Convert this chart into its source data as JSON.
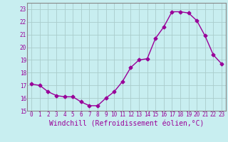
{
  "x": [
    0,
    1,
    2,
    3,
    4,
    5,
    6,
    7,
    8,
    9,
    10,
    11,
    12,
    13,
    14,
    15,
    16,
    17,
    18,
    19,
    20,
    21,
    22,
    23
  ],
  "y": [
    17.1,
    17.0,
    16.5,
    16.2,
    16.1,
    16.1,
    15.7,
    15.4,
    15.4,
    16.0,
    16.5,
    17.3,
    18.4,
    19.0,
    19.1,
    20.7,
    21.6,
    22.8,
    22.8,
    22.7,
    22.1,
    20.9,
    19.4,
    18.7
  ],
  "line_color": "#990099",
  "marker": "D",
  "marker_size": 2.5,
  "bg_color": "#c8eef0",
  "grid_color": "#aacccc",
  "xlabel": "Windchill (Refroidissement éolien,°C)",
  "ylabel": "",
  "title": "",
  "ylim": [
    15,
    23.5
  ],
  "xlim": [
    -0.5,
    23.5
  ],
  "yticks": [
    15,
    16,
    17,
    18,
    19,
    20,
    21,
    22,
    23
  ],
  "xticks": [
    0,
    1,
    2,
    3,
    4,
    5,
    6,
    7,
    8,
    9,
    10,
    11,
    12,
    13,
    14,
    15,
    16,
    17,
    18,
    19,
    20,
    21,
    22,
    23
  ],
  "tick_label_color": "#990099",
  "tick_label_fontsize": 5.5,
  "xlabel_fontsize": 7,
  "line_width": 1.0,
  "spine_color": "#888888"
}
